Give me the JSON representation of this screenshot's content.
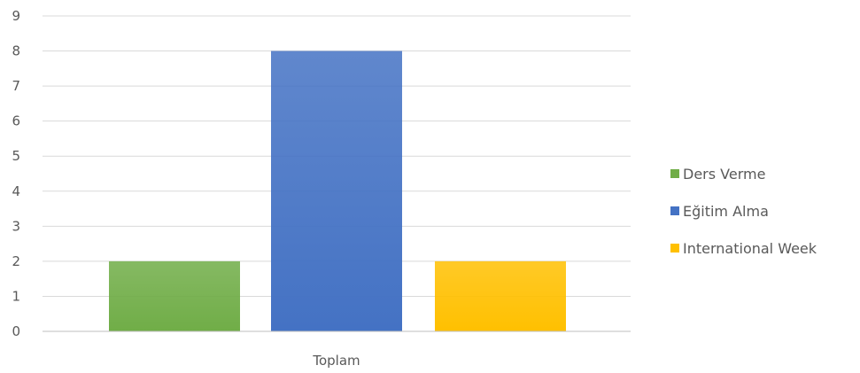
{
  "chart_data": {
    "type": "bar",
    "categories": [
      "Toplam"
    ],
    "series": [
      {
        "name": "Ders Verme",
        "values": [
          2
        ],
        "color": "#70ad47"
      },
      {
        "name": "Eğitim Alma",
        "values": [
          8
        ],
        "color": "#4472c4"
      },
      {
        "name": "International Week",
        "values": [
          2
        ],
        "color": "#ffc000"
      }
    ],
    "ylim": [
      0,
      9
    ],
    "yticks": [
      "0",
      "1",
      "2",
      "3",
      "4",
      "5",
      "6",
      "7",
      "8",
      "9"
    ],
    "grid": true,
    "legend_position": "right"
  }
}
